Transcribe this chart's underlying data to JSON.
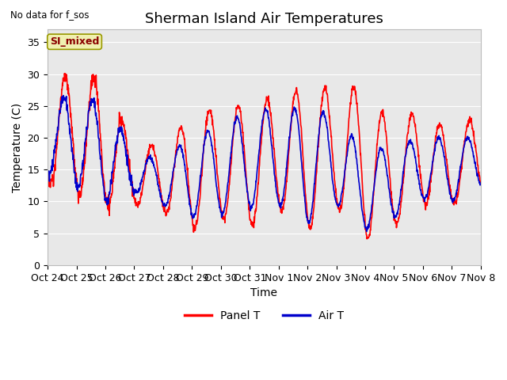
{
  "title": "Sherman Island Air Temperatures",
  "subtitle": "No data for f_sos",
  "ylabel": "Temperature (C)",
  "xlabel": "Time",
  "ylim": [
    0,
    37
  ],
  "yticks": [
    0,
    5,
    10,
    15,
    20,
    25,
    30,
    35
  ],
  "xtick_labels": [
    "Oct 24",
    "Oct 25",
    "Oct 26",
    "Oct 27",
    "Oct 28",
    "Oct 29",
    "Oct 30",
    "Oct 31",
    "Nov 1",
    "Nov 2",
    "Nov 3",
    "Nov 4",
    "Nov 5",
    "Nov 6",
    "Nov 7",
    "Nov 8"
  ],
  "legend_label_box": "SI_mixed",
  "legend_panel": "Panel T",
  "legend_air": "Air T",
  "panel_color": "#ff0000",
  "air_color": "#0000cc",
  "bg_color": "#e8e8e8",
  "title_fontsize": 13,
  "axis_fontsize": 10,
  "tick_fontsize": 9,
  "line_width": 1.2,
  "panel_peaks": [
    28.5,
    30.8,
    28.5,
    19.0,
    18.8,
    23.5,
    25.0,
    25.0,
    27.0,
    27.5,
    28.0,
    28.0,
    21.0,
    25.5,
    20.0,
    24.5
  ],
  "panel_troughs": [
    12.5,
    11.0,
    9.0,
    9.5,
    8.5,
    5.5,
    7.5,
    6.0,
    9.0,
    5.5,
    9.0,
    4.0,
    6.0,
    9.5,
    9.5,
    11.5
  ],
  "air_peaks": [
    25.5,
    27.0,
    25.5,
    17.5,
    16.5,
    20.5,
    21.5,
    24.5,
    24.5,
    24.8,
    23.5,
    17.5,
    19.0,
    20.0,
    20.0,
    20.0
  ],
  "air_troughs": [
    14.5,
    12.5,
    10.0,
    11.5,
    9.5,
    7.5,
    8.0,
    9.0,
    9.5,
    6.5,
    9.5,
    5.5,
    7.5,
    10.5,
    10.0,
    12.5
  ]
}
